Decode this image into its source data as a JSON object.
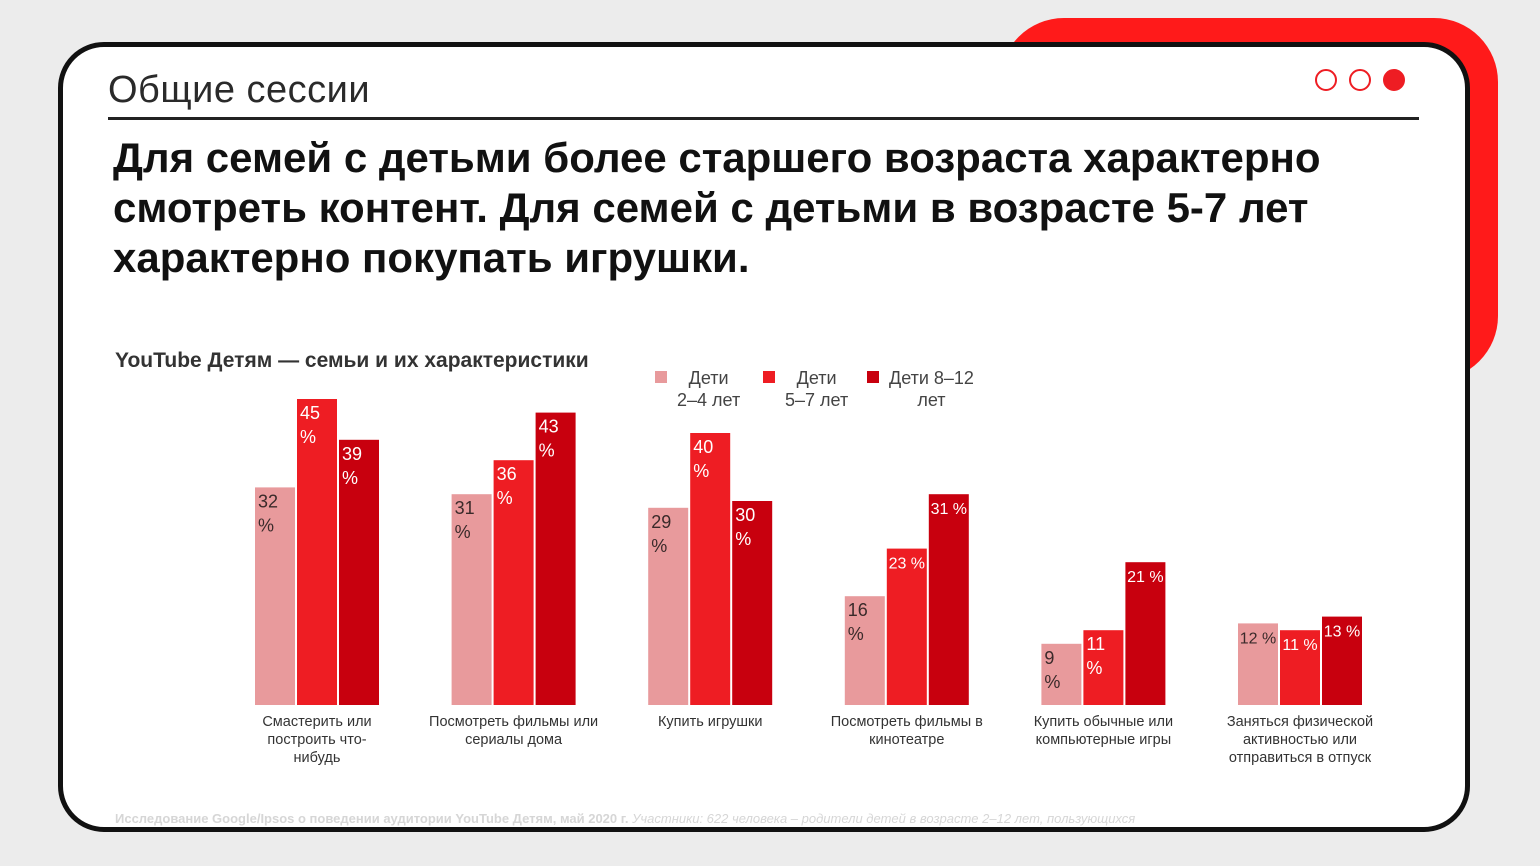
{
  "header": {
    "section_title": "Общие сессии",
    "headline_lines": [
      "Для семей с детьми более старшего возраста характерно",
      "смотреть контент. Для семей с детьми в возрасте 5-7 лет",
      "характерно покупать игрушки."
    ]
  },
  "pagination": {
    "total": 3,
    "active": 3,
    "accent": "#ee1d23"
  },
  "colors": {
    "series_2_4": "#e89a9c",
    "series_5_7": "#ee1d23",
    "series_8_12": "#c8000e"
  },
  "chart_data": {
    "type": "bar",
    "title": "YouTube Детям — семьи и их характеристики",
    "legend_position": "top-right",
    "grid": false,
    "ylim": [
      0,
      45
    ],
    "categories": [
      [
        "Смастерить или",
        "построить что-",
        "нибудь"
      ],
      [
        "Посмотреть фильмы или",
        "сериалы дома"
      ],
      [
        "Купить игрушки"
      ],
      [
        "Посмотреть фильмы в",
        "кинотеатре"
      ],
      [
        "Купить обычные или",
        "компьютерные игры"
      ],
      [
        "Заняться физической",
        "активностью или",
        "отправиться в отпуск"
      ]
    ],
    "series": [
      {
        "name": [
          "Дети",
          "2–4 лет"
        ],
        "values": [
          32,
          31,
          29,
          16,
          9,
          12
        ],
        "labels": [
          [
            "32",
            "%"
          ],
          [
            "31",
            "%"
          ],
          [
            "29",
            "%"
          ],
          [
            "16",
            "%"
          ],
          [
            "9",
            "%"
          ],
          [
            "12 %"
          ]
        ]
      },
      {
        "name": [
          "Дети",
          "5–7 лет"
        ],
        "values": [
          45,
          36,
          40,
          23,
          11,
          11
        ],
        "labels": [
          [
            "45",
            "%"
          ],
          [
            "36",
            "%"
          ],
          [
            "40",
            "%"
          ],
          [
            "23 %"
          ],
          [
            "11",
            "%"
          ],
          [
            "11 %"
          ]
        ]
      },
      {
        "name": [
          "Дети 8–12",
          "лет"
        ],
        "values": [
          39,
          43,
          30,
          31,
          21,
          13
        ],
        "labels": [
          [
            "39",
            "%"
          ],
          [
            "43",
            "%"
          ],
          [
            "30",
            "%"
          ],
          [
            "31 %"
          ],
          [
            "21 %"
          ],
          [
            "13 %"
          ]
        ]
      }
    ]
  },
  "footnote": {
    "bold": "Исследование Google/Ipsos о поведении аудитории YouTube Детям, май 2020 г.",
    "italic": "Участники: 622 человека – родители детей в возрасте 2–12 лет, пользующихся"
  }
}
